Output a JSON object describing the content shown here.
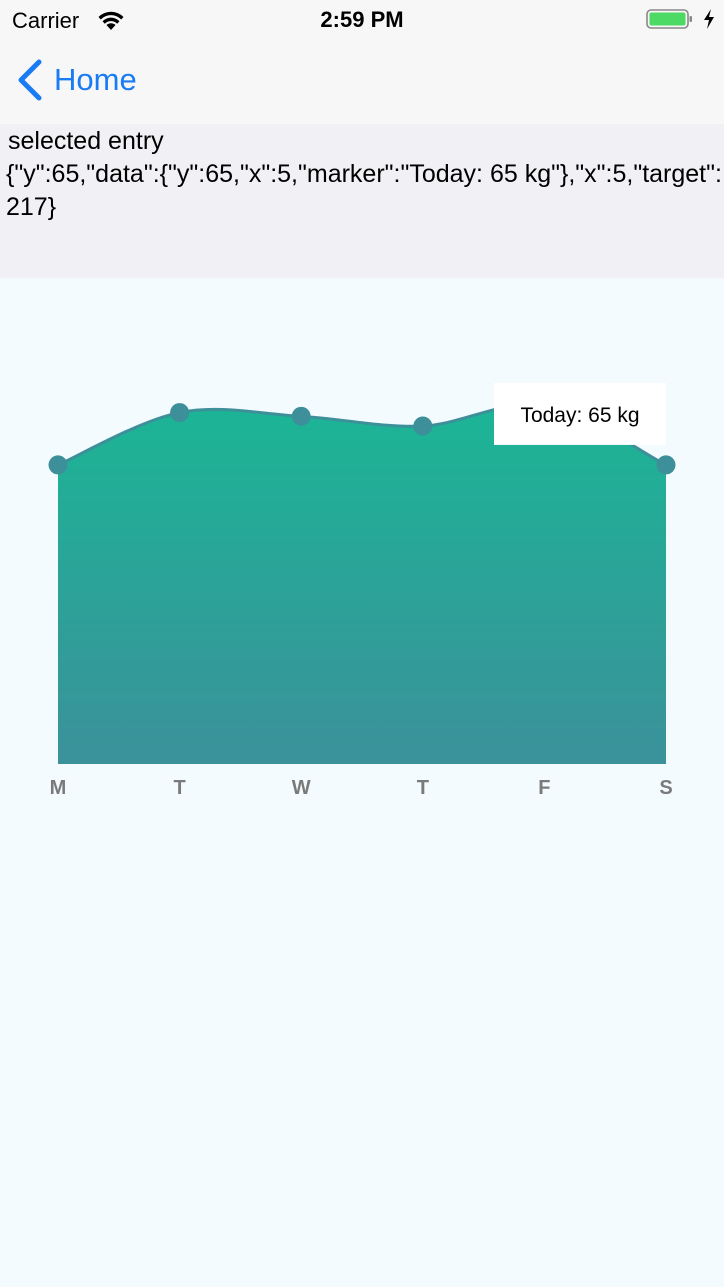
{
  "status_bar": {
    "carrier": "Carrier",
    "time": "2:59 PM",
    "battery_color": "#4cd964"
  },
  "nav": {
    "back_label": "Home",
    "accent_color": "#1a7cf5"
  },
  "selected_entry": {
    "title": "selected entry",
    "json_text": "{\"y\":65,\"data\":{\"y\":65,\"x\":5,\"marker\":\"Today: 65 kg\"},\"x\":5,\"target\":217}"
  },
  "chart_data": {
    "type": "area",
    "categories": [
      "M",
      "T",
      "W",
      "T",
      "F",
      "S"
    ],
    "values": [
      65,
      72,
      71.5,
      70.2,
      73,
      65
    ],
    "ylim": [
      25,
      90
    ],
    "marker_label": "Today: 65 kg",
    "selected_index": 5,
    "fill_gradient": [
      "#1bb596",
      "#3b919a"
    ],
    "line_color": "#3d8f99",
    "point_color": "#3d8f99"
  }
}
